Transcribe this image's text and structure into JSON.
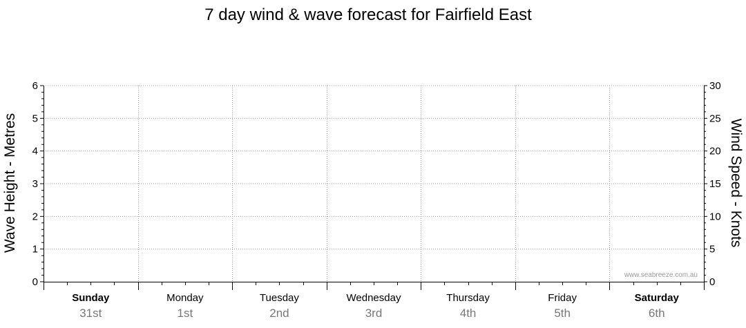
{
  "chart_data": {
    "type": "line",
    "title": "7 day wind & wave forecast for Fairfield East",
    "ylabel": "Wave Height - Metres",
    "y2label": "Wind Speed - Knots",
    "ylim": [
      0,
      6
    ],
    "y2lim": [
      0,
      30
    ],
    "yticks": [
      "0",
      "1",
      "2",
      "3",
      "4",
      "5",
      "6"
    ],
    "y2ticks": [
      "0",
      "5",
      "10",
      "15",
      "20",
      "25",
      "30"
    ],
    "days": [
      {
        "name": "Sunday",
        "date": "31st",
        "weekend": true
      },
      {
        "name": "Monday",
        "date": "1st",
        "weekend": false
      },
      {
        "name": "Tuesday",
        "date": "2nd",
        "weekend": false
      },
      {
        "name": "Wednesday",
        "date": "3rd",
        "weekend": false
      },
      {
        "name": "Thursday",
        "date": "4th",
        "weekend": false
      },
      {
        "name": "Friday",
        "date": "5th",
        "weekend": false
      },
      {
        "name": "Saturday",
        "date": "6th",
        "weekend": true
      }
    ],
    "series": [],
    "grid": true,
    "watermark": "www.seabreeze.com.au"
  }
}
